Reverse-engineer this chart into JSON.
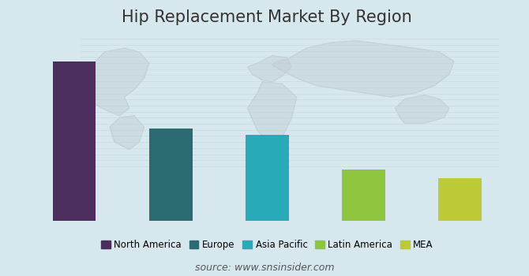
{
  "title": "Hip Replacement Market By Region",
  "categories": [
    "North America",
    "Europe",
    "Asia Pacific",
    "Latin America",
    "MEA"
  ],
  "values": [
    100,
    58,
    54,
    32,
    27
  ],
  "bar_colors": [
    "#4B2D5E",
    "#2B6B72",
    "#28AAB8",
    "#8DC53F",
    "#BBCA35"
  ],
  "background_color": "#D6E8ED",
  "watermark_color": "#C2D0D5",
  "source_text": "source: www.snsinsider.com",
  "title_fontsize": 15,
  "legend_fontsize": 8.5,
  "source_fontsize": 9,
  "ylim": [
    0,
    118
  ],
  "bar_width": 0.45
}
